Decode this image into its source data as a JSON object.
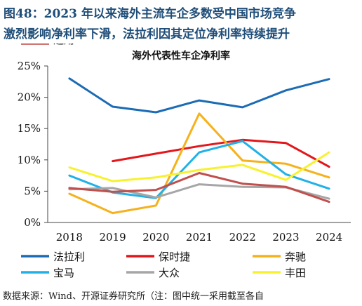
{
  "figure": {
    "title_line1": "图48：2023 年以来海外主流车企多数受中国市场竞争",
    "title_line2": "激烈影响净利率下滑，法拉利因其定位净利率持续提升",
    "source": "数据来源：Wind、开源证券研究所（注：图中统一采用截至各自"
  },
  "chart_data": {
    "type": "line",
    "title": "海外代表性车企净利率",
    "categories": [
      "2018",
      "2019",
      "2020",
      "2021",
      "2022",
      "2023",
      "2024"
    ],
    "y_ticks": [
      "0%",
      "5%",
      "10%",
      "15%",
      "20%",
      "25%"
    ],
    "ylim": [
      0,
      25
    ],
    "grid": false,
    "legend_position": "bottom",
    "series": [
      {
        "name": "法拉利",
        "color": "#1c6bb5",
        "values": [
          23.0,
          18.5,
          17.6,
          19.5,
          18.4,
          21.1,
          22.9
        ]
      },
      {
        "name": "保时捷",
        "color": "#e3161b",
        "values": [
          null,
          9.8,
          11.0,
          12.2,
          13.2,
          12.7,
          8.9
        ]
      },
      {
        "name": "奔驰",
        "color": "#f5b21d",
        "values": [
          4.6,
          1.5,
          2.7,
          17.4,
          9.9,
          9.4,
          7.2
        ]
      },
      {
        "name": "宝马",
        "color": "#21b1e6",
        "values": [
          7.5,
          4.8,
          3.9,
          11.2,
          13.0,
          7.7,
          5.4
        ]
      },
      {
        "name": "大众",
        "color": "#a6a6a6",
        "values": [
          5.3,
          5.5,
          4.0,
          6.1,
          5.7,
          5.6,
          3.8
        ]
      },
      {
        "name": "丰田",
        "color": "#f7f22d",
        "values": [
          8.8,
          6.6,
          7.2,
          8.4,
          9.2,
          6.8,
          11.2
        ]
      },
      {
        "name": "通用",
        "color": "#c0504d",
        "values": [
          5.5,
          4.9,
          5.2,
          7.9,
          6.2,
          5.7,
          3.3
        ]
      }
    ]
  }
}
